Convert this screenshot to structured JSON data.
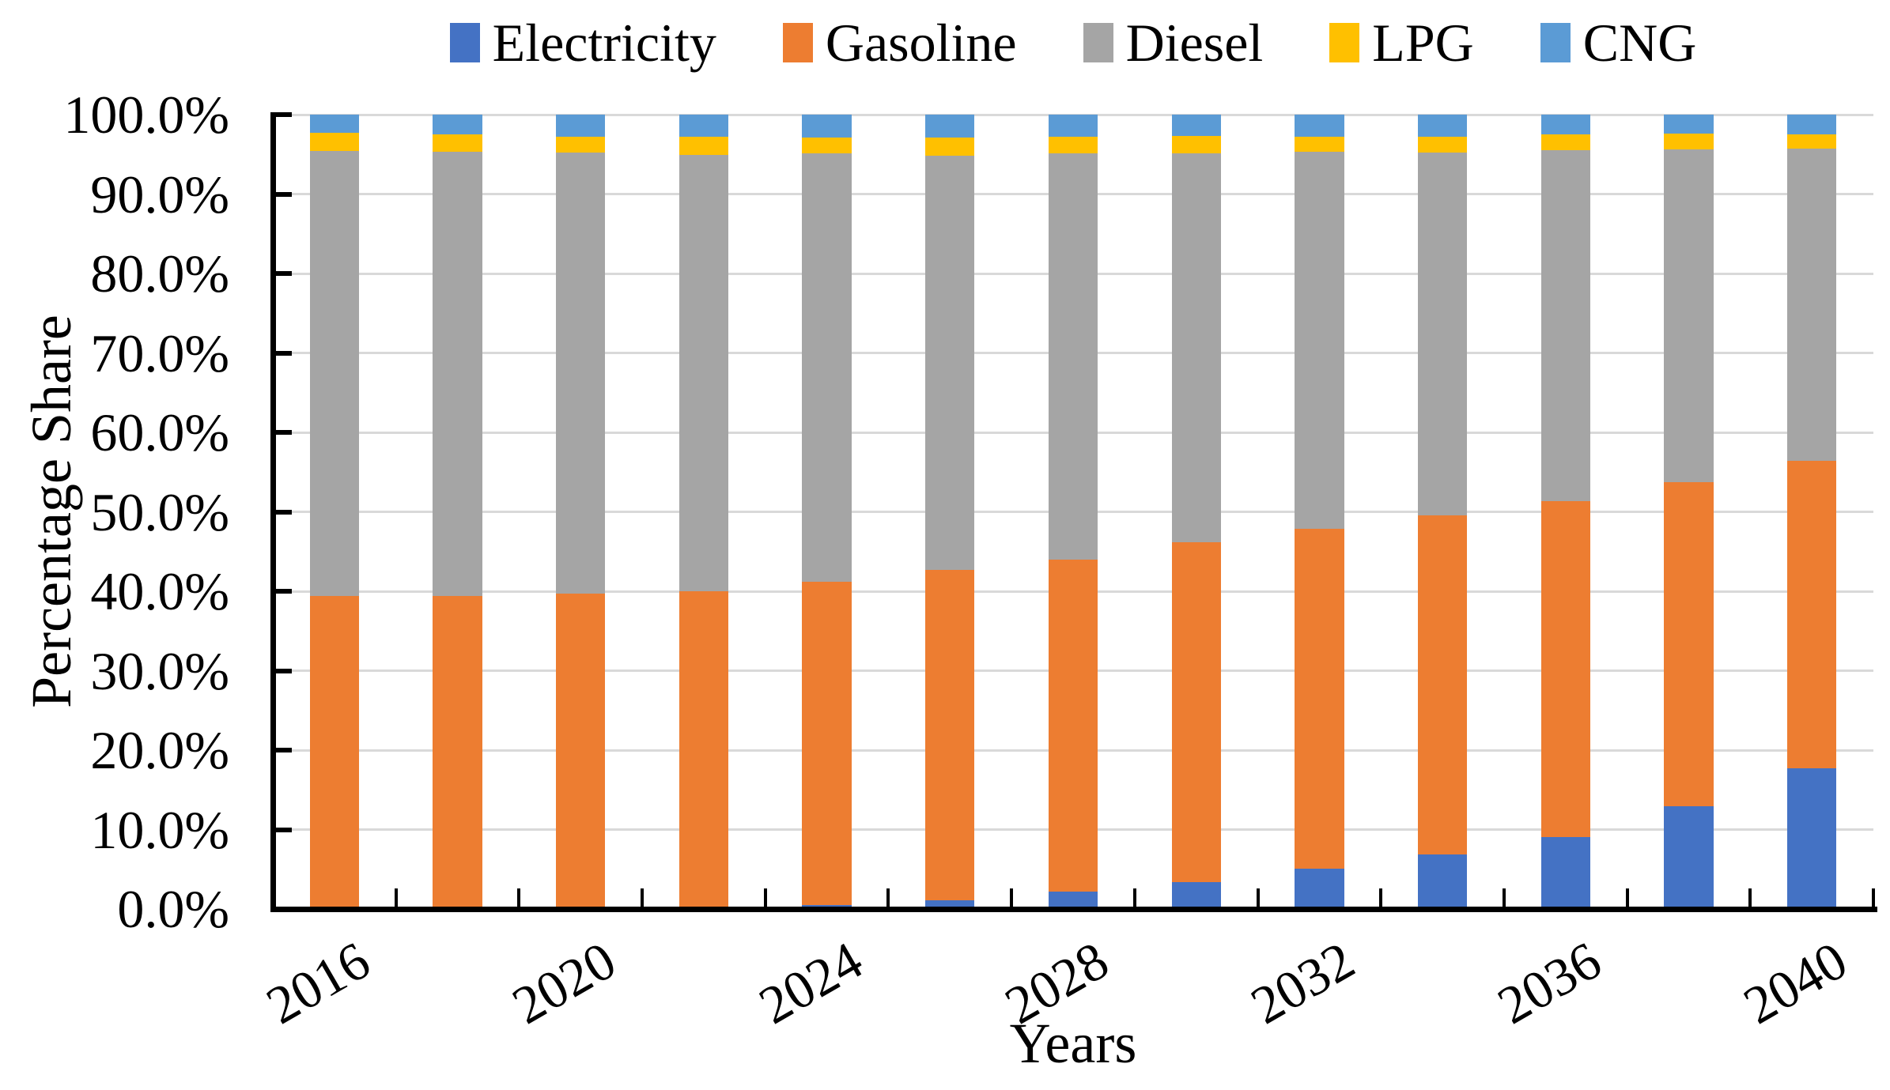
{
  "chart": {
    "y_axis_title": "Percentage Share",
    "x_axis_title": "Years"
  },
  "legend": {
    "items": [
      {
        "label": "Electricity",
        "color": "#4472C4"
      },
      {
        "label": "Gasoline",
        "color": "#ED7D31"
      },
      {
        "label": "Diesel",
        "color": "#A5A5A5"
      },
      {
        "label": "LPG",
        "color": "#FFC000"
      },
      {
        "label": "CNG",
        "color": "#5B9BD5"
      }
    ]
  },
  "chart_data": {
    "type": "bar",
    "stacked": true,
    "units": "percent",
    "title": "",
    "xlabel": "Years",
    "ylabel": "Percentage Share",
    "categories": [
      2016,
      2018,
      2020,
      2022,
      2024,
      2026,
      2028,
      2030,
      2032,
      2034,
      2036,
      2038,
      2040
    ],
    "x_tick_labels_shown": [
      "2016",
      "2020",
      "2024",
      "2028",
      "2032",
      "2036",
      "2040"
    ],
    "x_label_interval": 2,
    "series": [
      {
        "name": "Electricity",
        "color": "#4472C4",
        "values": [
          0.0,
          0.0,
          0.0,
          0.0,
          0.5,
          1.1,
          2.2,
          3.4,
          5.1,
          6.9,
          9.1,
          12.9,
          17.7
        ]
      },
      {
        "name": "Gasoline",
        "color": "#ED7D31",
        "values": [
          39.4,
          39.4,
          39.7,
          40.0,
          40.7,
          41.6,
          41.8,
          42.8,
          42.8,
          42.7,
          42.2,
          40.8,
          38.7
        ]
      },
      {
        "name": "Diesel",
        "color": "#A5A5A5",
        "values": [
          56.0,
          55.9,
          55.5,
          54.9,
          53.9,
          52.1,
          51.1,
          48.9,
          47.4,
          45.6,
          44.2,
          41.9,
          39.3
        ]
      },
      {
        "name": "LPG",
        "color": "#FFC000",
        "values": [
          2.3,
          2.2,
          2.0,
          2.3,
          2.0,
          2.3,
          2.1,
          2.2,
          1.9,
          2.0,
          2.0,
          2.0,
          1.8
        ]
      },
      {
        "name": "CNG",
        "color": "#5B9BD5",
        "values": [
          2.3,
          2.5,
          2.8,
          2.8,
          2.9,
          2.9,
          2.8,
          2.7,
          2.8,
          2.8,
          2.5,
          2.4,
          2.5
        ]
      }
    ],
    "ylim": [
      0,
      100
    ],
    "y_tick_step": 10,
    "y_tick_labels": [
      "0.0%",
      "10.0%",
      "20.0%",
      "30.0%",
      "40.0%",
      "50.0%",
      "60.0%",
      "70.0%",
      "80.0%",
      "90.0%",
      "100.0%"
    ],
    "grid": "horizontal",
    "gridline_color": "#D9D9D9",
    "axis_color": "#000000",
    "legend_position": "top",
    "bar_width_fraction": 0.4
  }
}
